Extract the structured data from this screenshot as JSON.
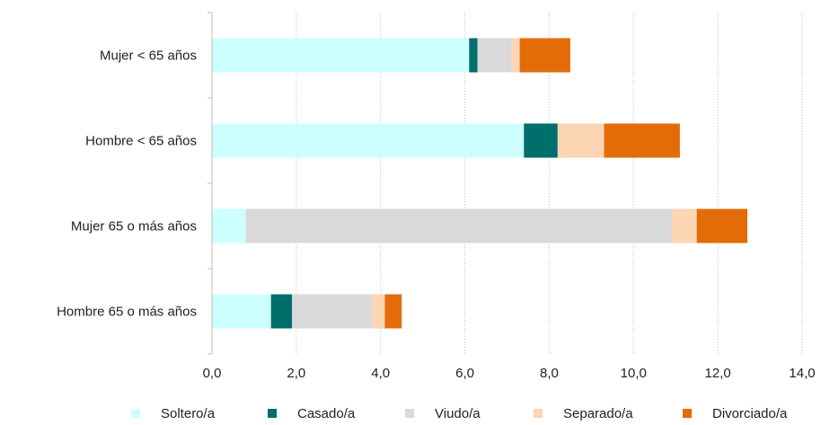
{
  "chart_data": {
    "type": "bar",
    "orientation": "horizontal",
    "stacked": true,
    "title": "",
    "xlabel": "",
    "ylabel": "",
    "xlim": [
      0,
      14
    ],
    "x_ticks": [
      "0,0",
      "2,0",
      "4,0",
      "6,0",
      "8,0",
      "10,0",
      "12,0",
      "14,0"
    ],
    "grid": "vertical dotted",
    "legend_position": "bottom",
    "categories": [
      "Mujer < 65 años",
      "Hombre < 65 años",
      "Mujer 65 o más años",
      "Hombre 65 o más años"
    ],
    "series": [
      {
        "name": "Soltero/a",
        "color": "#ccffff",
        "values": [
          6.1,
          7.4,
          0.8,
          1.4
        ]
      },
      {
        "name": "Casado/a",
        "color": "#006e6a",
        "values": [
          0.2,
          0.8,
          0.0,
          0.5
        ]
      },
      {
        "name": "Viudo/a",
        "color": "#d9d9d9",
        "values": [
          0.8,
          0.0,
          10.1,
          1.9
        ]
      },
      {
        "name": "Separado/a",
        "color": "#fcd5b5",
        "values": [
          0.2,
          1.1,
          0.6,
          0.3
        ]
      },
      {
        "name": "Divorciado/a",
        "color": "#e36c09",
        "values": [
          1.2,
          1.8,
          1.2,
          0.4
        ]
      }
    ]
  }
}
